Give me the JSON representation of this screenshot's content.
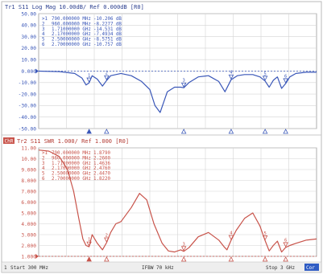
{
  "chart_data": [
    {
      "type": "line",
      "title": "Tr1 S11 Log Mag 10.00dB/ Ref 0.000dB [R0]",
      "ref_label": "0.000",
      "y_ticks": [
        "50.00",
        "40.00",
        "30.00",
        "20.00",
        "10.00",
        "0.000",
        "-10.00",
        "-20.00",
        "-30.00",
        "-40.00",
        "-50.00"
      ],
      "ylim": [
        -50,
        50
      ],
      "xlim": [
        300,
        3000
      ],
      "grid": true,
      "trace_color": "#3a57b8",
      "markers": [
        {
          "num": "1",
          "freq": "790.000000 MHz",
          "value": "-10.206 dB"
        },
        {
          "num": "2",
          "freq": "960.000000 MHz",
          "value": "-8.2277 dB"
        },
        {
          "num": "3",
          "freq": "1.71000000 GHz",
          "value": "-14.531 dB"
        },
        {
          "num": "4",
          "freq": "2.17000000 GHz",
          "value": "-7.4934 dB"
        },
        {
          "num": "5",
          "freq": "2.50000000 GHz",
          "value": "-8.5751 dB"
        },
        {
          "num": "6",
          "freq": "2.70000000 GHz",
          "value": "-10.757 dB"
        }
      ],
      "series": [
        {
          "x": [
            300,
            500,
            650,
            720,
            760,
            790,
            820,
            870,
            920,
            960,
            1000,
            1100,
            1200,
            1300,
            1380,
            1430,
            1480,
            1550,
            1620,
            1680,
            1710,
            1760,
            1850,
            1950,
            2050,
            2110,
            2170,
            2230,
            2300,
            2380,
            2450,
            2500,
            2540,
            2580,
            2620,
            2660,
            2700,
            2740,
            2800,
            2900,
            3000
          ],
          "y": [
            0,
            -0.5,
            -2,
            -6,
            -12,
            -10.2,
            -4,
            -7,
            -13,
            -8.2,
            -4,
            -2,
            -4,
            -9,
            -16,
            -30,
            -36,
            -18,
            -14,
            -14,
            -14.5,
            -10,
            -5,
            -4,
            -9,
            -18,
            -7.5,
            -4,
            -3,
            -3,
            -5,
            -8.6,
            -14,
            -8,
            -5,
            -15,
            -10.8,
            -5,
            -2,
            -1,
            -1
          ]
        }
      ]
    },
    {
      "type": "line",
      "title": "Tr2 S11 SWR 1.000/ Ref 1.000 [R0]",
      "ch_tag": "ChR",
      "ref_label": "1.000",
      "y_ticks": [
        "11.00",
        "10.00",
        "9.000",
        "8.000",
        "7.000",
        "6.000",
        "5.000",
        "4.000",
        "3.000",
        "2.000",
        "1.000"
      ],
      "ylim": [
        1,
        11
      ],
      "xlim": [
        300,
        3000
      ],
      "grid": true,
      "trace_color": "#c8534a",
      "markers": [
        {
          "num": "1",
          "freq": "790.000000 MHz",
          "value": "1.8790"
        },
        {
          "num": "2",
          "freq": "960.000000 MHz",
          "value": "2.2600"
        },
        {
          "num": "3",
          "freq": "1.71000000 GHz",
          "value": "1.4636"
        },
        {
          "num": "4",
          "freq": "2.17000000 GHz",
          "value": "2.4760"
        },
        {
          "num": "5",
          "freq": "2.50000000 GHz",
          "value": "2.4470"
        },
        {
          "num": "6",
          "freq": "2.70000000 GHz",
          "value": "1.8220"
        }
      ],
      "series": [
        {
          "x": [
            300,
            400,
            500,
            580,
            640,
            690,
            730,
            760,
            790,
            820,
            870,
            920,
            960,
            1000,
            1050,
            1100,
            1200,
            1280,
            1350,
            1420,
            1500,
            1560,
            1620,
            1680,
            1710,
            1760,
            1850,
            1950,
            2050,
            2100,
            2130,
            2170,
            2220,
            2300,
            2380,
            2450,
            2500,
            2540,
            2580,
            2620,
            2660,
            2700,
            2740,
            2800,
            2900,
            3000
          ],
          "y": [
            10.8,
            10.7,
            10.2,
            9.0,
            7.0,
            4.5,
            2.6,
            2.0,
            1.88,
            3.0,
            2.2,
            1.6,
            2.26,
            3.2,
            4.0,
            4.2,
            5.5,
            6.8,
            6.2,
            4.0,
            2.2,
            1.5,
            1.4,
            1.6,
            1.46,
            1.8,
            2.8,
            3.2,
            2.5,
            1.9,
            1.6,
            2.48,
            3.4,
            4.5,
            5.0,
            3.8,
            2.45,
            1.5,
            2.0,
            2.4,
            1.4,
            1.82,
            2.0,
            2.2,
            2.5,
            2.6
          ]
        }
      ]
    }
  ],
  "status_bar": {
    "channel": "1",
    "start": "Start 300 MHz",
    "ifbw": "IFBW 70 kHz",
    "stop": "Stop 3 GHz",
    "tag": "Cor"
  }
}
